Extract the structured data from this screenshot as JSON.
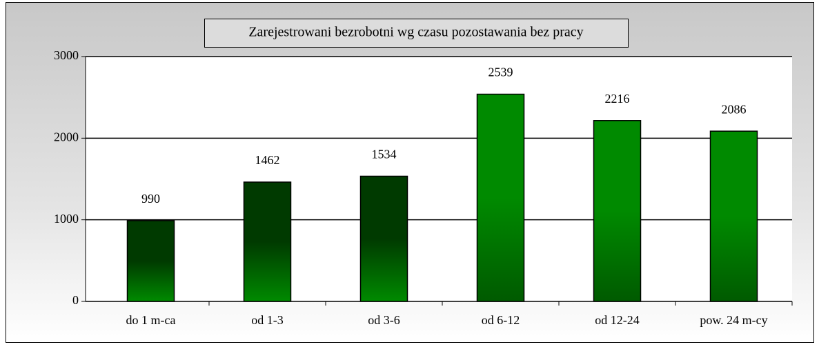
{
  "chart_data": {
    "type": "bar",
    "title": "Zarejestrowani bezrobotni wg czasu pozostawania bez pracy",
    "categories": [
      "do 1 m-ca",
      "od 1-3",
      "od 3-6",
      "od 6-12",
      "od 12-24",
      "pow. 24 m-cy"
    ],
    "values": [
      990,
      1462,
      1534,
      2539,
      2216,
      2086
    ],
    "colors": [
      [
        "#003a00",
        "#008a00"
      ],
      [
        "#003a00",
        "#008a00"
      ],
      [
        "#003a00",
        "#008a00"
      ],
      [
        "#008a00",
        "#005a00"
      ],
      [
        "#008a00",
        "#005a00"
      ],
      [
        "#008a00",
        "#005a00"
      ]
    ],
    "ylim": [
      0,
      3000
    ],
    "yticks": [
      0,
      1000,
      2000,
      3000
    ],
    "grid": true
  }
}
